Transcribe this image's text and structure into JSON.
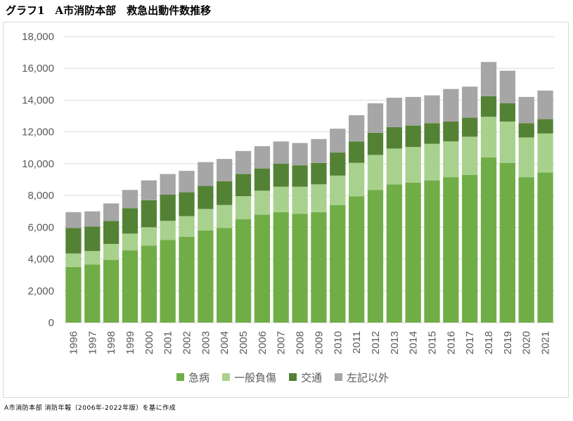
{
  "caption": "グラフ1　A市消防本部　救急出動件数推移",
  "source": "A市消防本部 消防年報（2006年-2022年版）を基に作成",
  "chart_data": {
    "type": "bar",
    "stacked": true,
    "categories": [
      "1996",
      "1997",
      "1998",
      "1999",
      "2000",
      "2001",
      "2002",
      "2003",
      "2004",
      "2005",
      "2006",
      "2007",
      "2008",
      "2009",
      "2010",
      "2011",
      "2012",
      "2013",
      "2014",
      "2015",
      "2016",
      "2017",
      "2018",
      "2019",
      "2020",
      "2021"
    ],
    "series": [
      {
        "name": "急病",
        "color": "#70ad47",
        "values": [
          3500,
          3650,
          3950,
          4550,
          4850,
          5200,
          5400,
          5800,
          5950,
          6500,
          6800,
          6950,
          6850,
          6950,
          7400,
          7950,
          8350,
          8700,
          8800,
          8950,
          9150,
          9300,
          10400,
          10050,
          9150,
          9450
        ]
      },
      {
        "name": "一般負傷",
        "color": "#a9d18e",
        "values": [
          850,
          850,
          1000,
          1050,
          1150,
          1200,
          1300,
          1350,
          1450,
          1450,
          1500,
          1600,
          1700,
          1750,
          1850,
          2100,
          2200,
          2250,
          2250,
          2300,
          2250,
          2400,
          2550,
          2600,
          2500,
          2450
        ]
      },
      {
        "name": "交通",
        "color": "#548235",
        "values": [
          1600,
          1550,
          1450,
          1600,
          1700,
          1650,
          1500,
          1450,
          1500,
          1400,
          1400,
          1450,
          1350,
          1350,
          1450,
          1350,
          1400,
          1350,
          1350,
          1300,
          1250,
          1200,
          1300,
          1150,
          900,
          900
        ]
      },
      {
        "name": "左記以外",
        "color": "#a6a6a6",
        "values": [
          1000,
          950,
          1100,
          1150,
          1250,
          1300,
          1350,
          1500,
          1400,
          1450,
          1400,
          1400,
          1400,
          1500,
          1500,
          1650,
          1850,
          1850,
          1800,
          1750,
          2050,
          1950,
          2150,
          2050,
          1650,
          1800
        ]
      }
    ],
    "ylim": [
      0,
      18000
    ],
    "yticks": [
      "0",
      "2,000",
      "4,000",
      "6,000",
      "8,000",
      "10,000",
      "12,000",
      "14,000",
      "16,000",
      "18,000"
    ],
    "grid": true,
    "legend_position": "bottom"
  }
}
